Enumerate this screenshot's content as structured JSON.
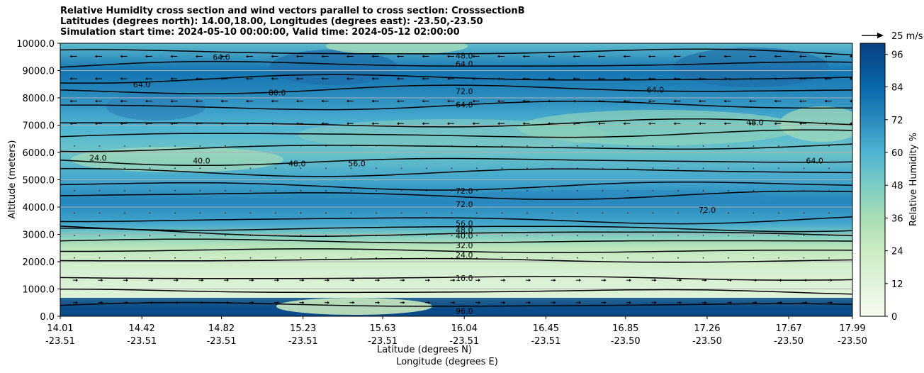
{
  "chart_data": {
    "type": "contour",
    "title_lines": [
      "Relative Humidity cross section and wind vectors parallel to cross section: CrosssectionB",
      "Latitudes (degrees north): 14.00,18.00, Longitudes (degrees east): -23.50,-23.50",
      "Simulation start time: 2024-05-10 00:00:00, Valid time: 2024-05-12 02:00:00"
    ],
    "ylabel": "Altitude (meters)",
    "xlabel_line1": "Latitude (degrees N)",
    "xlabel_line2": "Longitude (degrees E)",
    "ylim": [
      0,
      10000
    ],
    "yticks": [
      "0.0",
      "1000.0",
      "2000.0",
      "3000.0",
      "4000.0",
      "5000.0",
      "6000.0",
      "7000.0",
      "8000.0",
      "9000.0",
      "10000.0"
    ],
    "xtick_lats": [
      "14.01",
      "14.42",
      "14.82",
      "15.23",
      "15.63",
      "16.04",
      "16.45",
      "16.85",
      "17.26",
      "17.67",
      "17.99"
    ],
    "xtick_lons": [
      "-23.51",
      "-23.51",
      "-23.51",
      "-23.51",
      "-23.51",
      "-23.51",
      "-23.51",
      "-23.50",
      "-23.50",
      "-23.50",
      "-23.50"
    ],
    "colorbar": {
      "label": "Relative Humidity %",
      "ticks": [
        "0",
        "12",
        "24",
        "36",
        "48",
        "60",
        "72",
        "84",
        "96"
      ],
      "range": [
        0,
        100
      ]
    },
    "quiver_key": "25 m/s",
    "contour_levels": [
      "16.0",
      "24.0",
      "32.0",
      "40.0",
      "48.0",
      "56.0",
      "64.0",
      "72.0",
      "80.0",
      "88.0",
      "96.0"
    ],
    "profile": [
      {
        "altitude": 0,
        "rh": 96
      },
      {
        "altitude": 300,
        "rh": 88
      },
      {
        "altitude": 700,
        "rh": 14
      },
      {
        "altitude": 1500,
        "rh": 16
      },
      {
        "altitude": 2200,
        "rh": 24
      },
      {
        "altitude": 2600,
        "rh": 32
      },
      {
        "altitude": 3000,
        "rh": 48
      },
      {
        "altitude": 3400,
        "rh": 64
      },
      {
        "altitude": 4200,
        "rh": 74
      },
      {
        "altitude": 5000,
        "rh": 64
      },
      {
        "altitude": 6000,
        "rh": 52
      },
      {
        "altitude": 7000,
        "rh": 60
      },
      {
        "altitude": 8000,
        "rh": 72
      },
      {
        "altitude": 9000,
        "rh": 80
      },
      {
        "altitude": 10000,
        "rh": 56
      }
    ]
  }
}
